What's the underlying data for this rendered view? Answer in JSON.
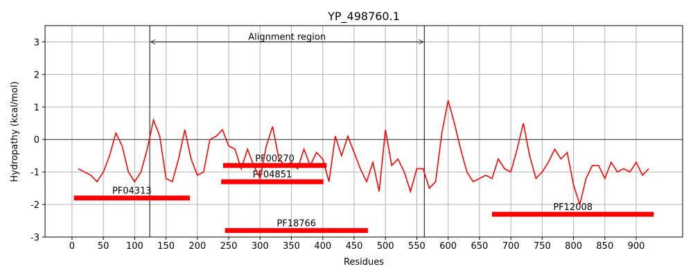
{
  "chart_data": {
    "type": "line",
    "title": "YP_498760.1",
    "x_label": "Residues",
    "y_label": "Hydropathy (kcal/mol)",
    "x": [
      10,
      20,
      30,
      40,
      50,
      60,
      70,
      80,
      90,
      100,
      110,
      120,
      130,
      140,
      150,
      160,
      170,
      180,
      190,
      200,
      210,
      220,
      230,
      240,
      250,
      260,
      270,
      280,
      290,
      300,
      310,
      320,
      330,
      340,
      350,
      360,
      370,
      380,
      390,
      400,
      410,
      420,
      430,
      440,
      450,
      460,
      470,
      480,
      490,
      500,
      510,
      520,
      530,
      540,
      550,
      560,
      570,
      580,
      590,
      600,
      610,
      620,
      630,
      640,
      650,
      660,
      670,
      680,
      690,
      700,
      710,
      720,
      730,
      740,
      750,
      760,
      770,
      780,
      790,
      800,
      810,
      820,
      830,
      840,
      850,
      860,
      870,
      880,
      890,
      900,
      910,
      920
    ],
    "series": [
      {
        "name": "Hydropathy",
        "color": "#ff0000",
        "values": [
          -0.9,
          -1.0,
          -1.1,
          -1.3,
          -1.0,
          -0.5,
          0.2,
          -0.2,
          -1.0,
          -1.3,
          -1.0,
          -0.3,
          0.6,
          0.1,
          -1.2,
          -1.3,
          -0.6,
          0.3,
          -0.6,
          -1.1,
          -1.0,
          0.0,
          0.1,
          0.3,
          -0.2,
          -0.3,
          -0.9,
          -0.3,
          -0.8,
          -1.2,
          -0.2,
          0.4,
          -0.6,
          -0.8,
          -0.7,
          -0.9,
          -0.3,
          -0.8,
          -0.4,
          -0.6,
          -1.3,
          0.1,
          -0.5,
          0.1,
          -0.4,
          -0.9,
          -1.3,
          -0.7,
          -1.6,
          0.3,
          -0.8,
          -0.6,
          -1.0,
          -1.6,
          -0.9,
          -0.9,
          -1.5,
          -1.3,
          0.2,
          1.2,
          0.5,
          -0.3,
          -1.0,
          -1.3,
          -1.2,
          -1.1,
          -1.2,
          -0.6,
          -0.9,
          -1.0,
          -0.3,
          0.5,
          -0.5,
          -1.2,
          -1.0,
          -0.7,
          -0.3,
          -0.6,
          -0.4,
          -1.4,
          -2.0,
          -1.2,
          -0.8,
          -0.8,
          -1.2,
          -0.7,
          -1.0,
          -0.9,
          -1.0,
          -0.7,
          -1.1,
          -0.9
        ]
      }
    ],
    "domains": [
      {
        "name": "PF04313",
        "start": 3,
        "end": 188,
        "y": -1.8
      },
      {
        "name": "PF00270",
        "start": 241,
        "end": 406,
        "y": -0.8
      },
      {
        "name": "PF04851",
        "start": 238,
        "end": 401,
        "y": -1.3
      },
      {
        "name": "PF18766",
        "start": 244,
        "end": 472,
        "y": -2.8
      },
      {
        "name": "PF12008",
        "start": 670,
        "end": 928,
        "y": -2.3
      }
    ],
    "domain_color": "#ff0000",
    "alignment_region": {
      "label": "Alignment region",
      "start": 124,
      "end": 562,
      "y": 3
    },
    "xlim": [
      -43,
      974
    ],
    "ylim": [
      -3,
      3.5
    ],
    "xticks": [
      0,
      50,
      100,
      150,
      200,
      250,
      300,
      350,
      400,
      450,
      500,
      550,
      600,
      650,
      700,
      750,
      800,
      850,
      900
    ],
    "yticks": [
      -3,
      -2,
      -1,
      0,
      1,
      2,
      3
    ],
    "grid": true
  }
}
